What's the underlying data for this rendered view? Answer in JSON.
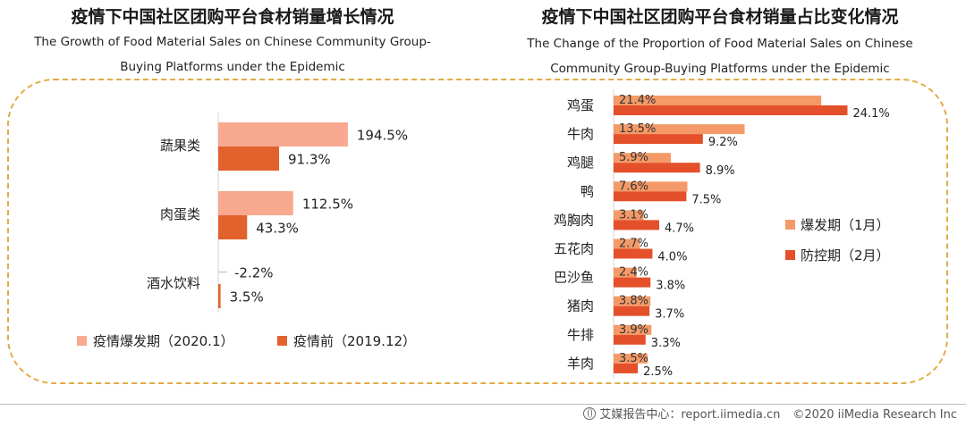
{
  "left_chart": {
    "title_zh": "疫情下中国社区团购平台食材销量增长情况",
    "title_en_line1": "The Growth of Food Material Sales on Chinese Community Group-",
    "title_en_line2": "Buying Platforms under the Epidemic",
    "legend": [
      "疫情爆发期（2020.1）",
      "疫情前（2019.12）"
    ]
  },
  "right_chart": {
    "title_zh": "疫情下中国社区团购平台食材销量占比变化情况",
    "title_en_line1": "The Change of the Proportion of Food Material Sales on Chinese",
    "title_en_line2": "Community Group-Buying Platforms under the Epidemic",
    "legend": [
      "爆发期（1月）",
      "防控期（2月）"
    ]
  },
  "footer": {
    "source": "艾媒报告中心：report.iimedia.cn",
    "copyright": "©2020  iiMedia Research  Inc"
  },
  "colors": {
    "outbreak_light": "#f8a990",
    "pre_dark": "#e3612d",
    "jan_light": "#f49a68",
    "feb_dark": "#e4502a",
    "frame": "#e2ab45"
  },
  "chart_data": [
    {
      "type": "bar",
      "orientation": "horizontal",
      "categories": [
        "蔬果类",
        "肉蛋类",
        "酒水饮料"
      ],
      "series": [
        {
          "name": "疫情爆发期（2020.1）",
          "values": [
            194.5,
            112.5,
            -2.2
          ],
          "labels": [
            "194.5%",
            "112.5%",
            "-2.2%"
          ]
        },
        {
          "name": "疫情前（2019.12）",
          "values": [
            91.3,
            43.3,
            3.5
          ],
          "labels": [
            "91.3%",
            "43.3%",
            "3.5%"
          ]
        }
      ],
      "unit": "%",
      "legend": "bottom"
    },
    {
      "type": "bar",
      "orientation": "horizontal",
      "categories": [
        "鸡蛋",
        "牛肉",
        "鸡腿",
        "鸭",
        "鸡胸肉",
        "五花肉",
        "巴沙鱼",
        "猪肉",
        "牛排",
        "羊肉"
      ],
      "series": [
        {
          "name": "爆发期（1月）",
          "values": [
            21.4,
            13.5,
            5.9,
            7.6,
            3.1,
            2.7,
            2.4,
            3.8,
            3.9,
            3.5
          ],
          "labels": [
            "21.4%",
            "13.5%",
            "5.9%",
            "7.6%",
            "3.1%",
            "2.7%",
            "2.4%",
            "3.8%",
            "3.9%",
            "3.5%"
          ]
        },
        {
          "name": "防控期（2月）",
          "values": [
            24.1,
            9.2,
            8.9,
            7.5,
            4.7,
            4.0,
            3.8,
            3.7,
            3.3,
            2.5
          ],
          "labels": [
            "24.1%",
            "9.2%",
            "8.9%",
            "7.5%",
            "4.7%",
            "4.0%",
            "3.8%",
            "3.7%",
            "3.3%",
            "2.5%"
          ]
        }
      ],
      "unit": "%",
      "legend": "right"
    }
  ]
}
